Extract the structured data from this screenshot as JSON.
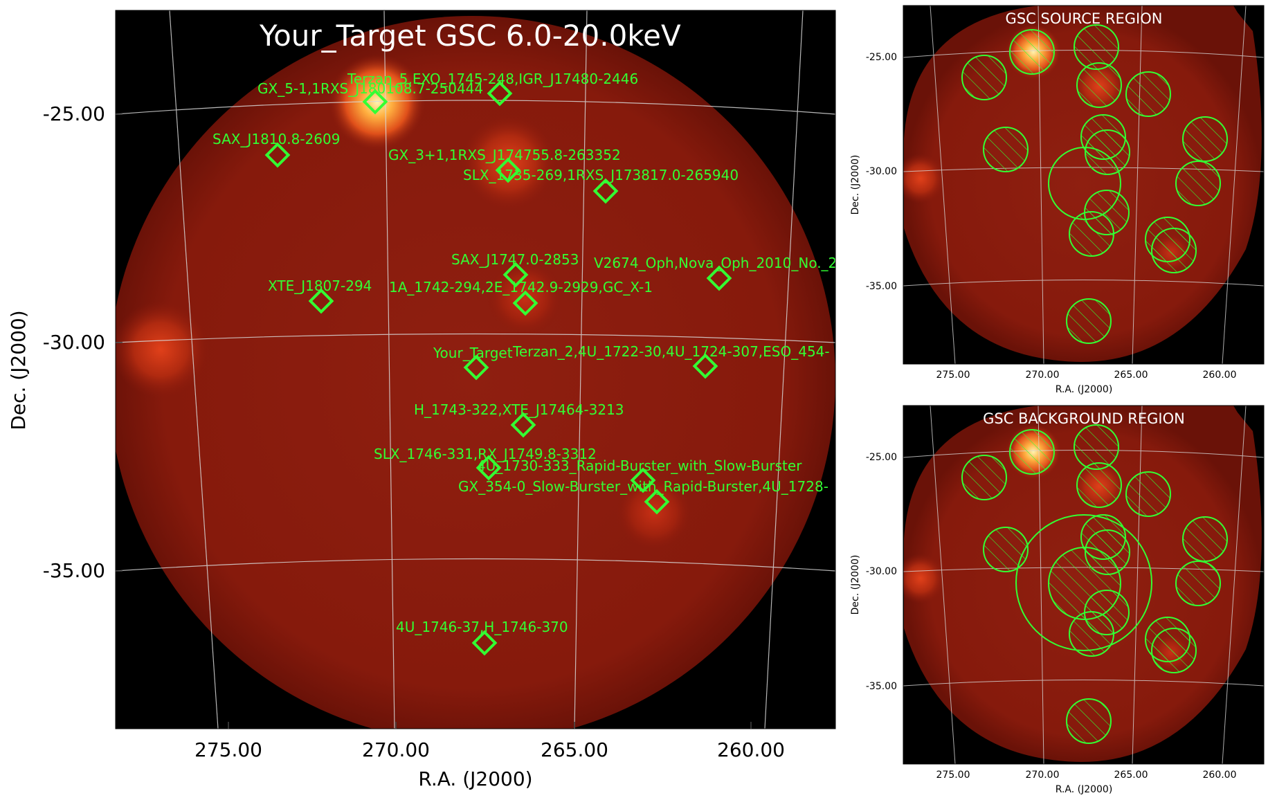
{
  "main_panel": {
    "title": "Your_Target GSC 6.0-20.0keV",
    "xlabel": "R.A. (J2000)",
    "ylabel": "Dec. (J2000)",
    "x_ticks": [
      "275.00",
      "270.00",
      "265.00",
      "260.00"
    ],
    "y_ticks": [
      "-25.00",
      "-30.00",
      "-35.00"
    ],
    "sources": [
      {
        "label": "GX_5-1,1RXS_J180108.7-250444"
      },
      {
        "label": "Terzan_5,EXO_1745-248,IGR_J17480-2446"
      },
      {
        "label": "SAX_J1810.8-2609"
      },
      {
        "label": "GX_3+1,1RXS_J174755.8-263352"
      },
      {
        "label": "SLX_1735-269,1RXS_J173817.0-265940"
      },
      {
        "label": "SAX_J1747.0-2853"
      },
      {
        "label": "V2674_Oph,Nova_Oph_2010_No._2"
      },
      {
        "label": "XTE_J1807-294"
      },
      {
        "label": "1A_1742-294,2E_1742.9-2929,GC_X-1"
      },
      {
        "label": "Your_Target"
      },
      {
        "label": "Terzan_2,4U_1722-30,4U_1724-307,ESO_454-"
      },
      {
        "label": "H_1743-322,XTE_J17464-3213"
      },
      {
        "label": "SLX_1746-331,RX_J1749.8-3312"
      },
      {
        "label": "4U_1730-333_Rapid-Burster_with_Slow-Burster"
      },
      {
        "label": "GX_354-0_Slow-Burster_with_Rapid-Burster,4U_1728-"
      },
      {
        "label": "4U_1746-37,H_1746-370"
      }
    ]
  },
  "source_panel": {
    "title": "GSC SOURCE REGION",
    "xlabel": "R.A. (J2000)",
    "ylabel": "Dec. (J2000)",
    "x_ticks": [
      "275.00",
      "270.00",
      "265.00",
      "260.00"
    ],
    "y_ticks": [
      "-25.00",
      "-30.00",
      "-35.00"
    ]
  },
  "background_panel": {
    "title": "GSC BACKGROUND REGION",
    "xlabel": "R.A. (J2000)",
    "ylabel": "Dec. (J2000)",
    "x_ticks": [
      "275.00",
      "270.00",
      "265.00",
      "260.00"
    ],
    "y_ticks": [
      "-25.00",
      "-30.00",
      "-35.00"
    ]
  },
  "colors": {
    "region": "#33ff33",
    "sky_background": "#000000",
    "map_base": "#8a1a0c",
    "grid": "#d8d8d8"
  }
}
